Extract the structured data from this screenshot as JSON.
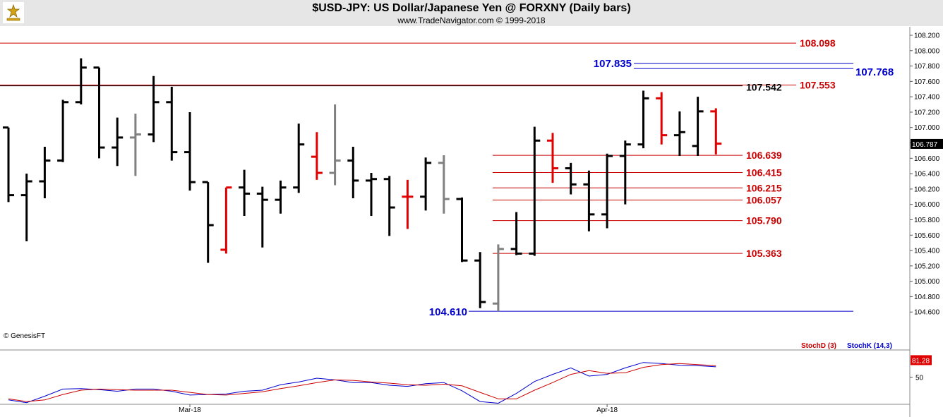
{
  "header": {
    "title": "$USD-JPY:  US Dollar/Japanese Yen @ FORXNY  (Daily bars)",
    "subtitle": "www.TradeNavigator.com © 1999-2018"
  },
  "watermark": "© GenesisFT",
  "colors": {
    "up_bar": "#000000",
    "down_bar": "#e00000",
    "neutral_bar": "#808080",
    "resistance_line": "#cc0000",
    "blue_level": "#0000cc",
    "stoch_d": "#cc0000",
    "stoch_k": "#0000cc"
  },
  "chart_data": [
    {
      "type": "ohlc",
      "title": "$USD-JPY:  US Dollar/Japanese Yen @ FORXNY  (Daily bars)",
      "ylim": [
        104.4,
        108.2
      ],
      "y_ticks": [
        "108.200",
        "108.000",
        "107.800",
        "107.600",
        "107.400",
        "107.200",
        "107.000",
        "106.800",
        "106.600",
        "106.400",
        "106.200",
        "106.000",
        "105.800",
        "105.600",
        "105.400",
        "105.200",
        "105.000",
        "104.800",
        "104.600"
      ],
      "x_labels": [
        {
          "label": "Mar-18",
          "bar_index": 10
        },
        {
          "label": "Apr-18",
          "bar_index": 33
        }
      ],
      "last_price": "106.787",
      "bars": [
        {
          "o": 107.0,
          "h": 107.0,
          "l": 106.03,
          "c": 106.12,
          "color": "black"
        },
        {
          "o": 106.12,
          "h": 106.4,
          "l": 105.52,
          "c": 106.3,
          "color": "black"
        },
        {
          "o": 106.3,
          "h": 106.75,
          "l": 106.08,
          "c": 106.57,
          "color": "black"
        },
        {
          "o": 106.57,
          "h": 107.36,
          "l": 106.55,
          "c": 107.33,
          "color": "black"
        },
        {
          "o": 107.33,
          "h": 107.9,
          "l": 107.3,
          "c": 107.78,
          "color": "black"
        },
        {
          "o": 107.78,
          "h": 107.78,
          "l": 106.6,
          "c": 106.74,
          "color": "black"
        },
        {
          "o": 106.74,
          "h": 107.13,
          "l": 106.5,
          "c": 106.87,
          "color": "black"
        },
        {
          "o": 106.87,
          "h": 107.18,
          "l": 106.37,
          "c": 106.91,
          "color": "gray"
        },
        {
          "o": 106.91,
          "h": 107.67,
          "l": 106.81,
          "c": 107.33,
          "color": "black"
        },
        {
          "o": 107.33,
          "h": 107.53,
          "l": 106.57,
          "c": 106.68,
          "color": "black"
        },
        {
          "o": 106.68,
          "h": 107.2,
          "l": 106.18,
          "c": 106.29,
          "color": "black"
        },
        {
          "o": 106.29,
          "h": 106.29,
          "l": 105.24,
          "c": 105.73,
          "color": "black"
        },
        {
          "o": 105.41,
          "h": 106.22,
          "l": 105.36,
          "c": 106.22,
          "color": "red"
        },
        {
          "o": 106.22,
          "h": 106.45,
          "l": 105.85,
          "c": 106.14,
          "color": "black"
        },
        {
          "o": 106.14,
          "h": 106.23,
          "l": 105.44,
          "c": 106.06,
          "color": "black"
        },
        {
          "o": 106.06,
          "h": 106.31,
          "l": 105.88,
          "c": 106.22,
          "color": "black"
        },
        {
          "o": 106.22,
          "h": 107.05,
          "l": 106.15,
          "c": 106.78,
          "color": "black"
        },
        {
          "o": 106.62,
          "h": 106.94,
          "l": 106.32,
          "c": 106.41,
          "color": "red"
        },
        {
          "o": 106.41,
          "h": 107.3,
          "l": 106.25,
          "c": 106.57,
          "color": "gray"
        },
        {
          "o": 106.57,
          "h": 106.75,
          "l": 106.08,
          "c": 106.31,
          "color": "black"
        },
        {
          "o": 106.31,
          "h": 106.41,
          "l": 105.85,
          "c": 106.33,
          "color": "black"
        },
        {
          "o": 106.33,
          "h": 106.37,
          "l": 105.59,
          "c": 105.96,
          "color": "black"
        },
        {
          "o": 106.1,
          "h": 106.32,
          "l": 105.68,
          "c": 106.1,
          "color": "red"
        },
        {
          "o": 106.1,
          "h": 106.61,
          "l": 105.92,
          "c": 106.54,
          "color": "black"
        },
        {
          "o": 106.54,
          "h": 106.64,
          "l": 105.88,
          "c": 106.07,
          "color": "gray"
        },
        {
          "o": 106.07,
          "h": 106.09,
          "l": 105.25,
          "c": 105.27,
          "color": "black"
        },
        {
          "o": 105.27,
          "h": 105.38,
          "l": 104.65,
          "c": 104.73,
          "color": "black"
        },
        {
          "o": 104.71,
          "h": 105.48,
          "l": 104.61,
          "c": 105.42,
          "color": "gray"
        },
        {
          "o": 105.42,
          "h": 105.9,
          "l": 105.34,
          "c": 105.36,
          "color": "black"
        },
        {
          "o": 105.36,
          "h": 107.01,
          "l": 105.33,
          "c": 106.83,
          "color": "black"
        },
        {
          "o": 106.83,
          "h": 106.93,
          "l": 106.28,
          "c": 106.47,
          "color": "red"
        },
        {
          "o": 106.47,
          "h": 106.54,
          "l": 106.13,
          "c": 106.26,
          "color": "black"
        },
        {
          "o": 106.26,
          "h": 106.44,
          "l": 105.65,
          "c": 105.87,
          "color": "black"
        },
        {
          "o": 105.87,
          "h": 106.66,
          "l": 105.69,
          "c": 106.63,
          "color": "black"
        },
        {
          "o": 106.63,
          "h": 106.83,
          "l": 106.0,
          "c": 106.78,
          "color": "black"
        },
        {
          "o": 106.78,
          "h": 107.48,
          "l": 106.73,
          "c": 107.38,
          "color": "black"
        },
        {
          "o": 107.38,
          "h": 107.46,
          "l": 106.78,
          "c": 106.9,
          "color": "red"
        },
        {
          "o": 106.9,
          "h": 107.21,
          "l": 106.63,
          "c": 106.94,
          "color": "black"
        },
        {
          "o": 106.76,
          "h": 107.4,
          "l": 106.63,
          "c": 107.21,
          "color": "black"
        },
        {
          "o": 107.21,
          "h": 107.25,
          "l": 106.65,
          "c": 106.79,
          "color": "red"
        }
      ],
      "levels": [
        {
          "value": 108.098,
          "label": "108.098",
          "color": "red",
          "start_bar": 0,
          "label_pos": "end"
        },
        {
          "value": 107.835,
          "label": "107.835",
          "color": "blue",
          "start_bar": 34,
          "label_pos": "start"
        },
        {
          "value": 107.768,
          "label": "107.768",
          "color": "blue",
          "start_bar": 34,
          "label_pos": "end"
        },
        {
          "value": 107.553,
          "label": "107.553",
          "color": "red",
          "start_bar": 0,
          "label_pos": "end"
        },
        {
          "value": 107.542,
          "label": "107.542",
          "color": "black",
          "start_bar": 0,
          "label_pos": "end"
        },
        {
          "value": 106.639,
          "label": "106.639",
          "color": "red",
          "start_bar": 27,
          "label_pos": "end"
        },
        {
          "value": 106.415,
          "label": "106.415",
          "color": "red",
          "start_bar": 27,
          "label_pos": "end"
        },
        {
          "value": 106.215,
          "label": "106.215",
          "color": "red",
          "start_bar": 27,
          "label_pos": "end"
        },
        {
          "value": 106.057,
          "label": "106.057",
          "color": "red",
          "start_bar": 27,
          "label_pos": "end"
        },
        {
          "value": 105.79,
          "label": "105.790",
          "color": "red",
          "start_bar": 27,
          "label_pos": "end"
        },
        {
          "value": 105.363,
          "label": "105.363",
          "color": "red",
          "start_bar": 27,
          "label_pos": "end"
        },
        {
          "value": 104.61,
          "label": "104.610",
          "color": "blue",
          "start_bar": 25,
          "label_pos": "start"
        }
      ]
    },
    {
      "type": "line",
      "ylim": [
        0,
        100
      ],
      "y_ticks": [
        "50"
      ],
      "last_value": "81.28",
      "legend": [
        {
          "name": "StochD (3)",
          "color": "red"
        },
        {
          "name": "StochK (14,3)",
          "color": "blue"
        }
      ],
      "series": [
        {
          "name": "StochK (14,3)",
          "values": [
            8,
            3,
            15,
            28,
            29,
            27,
            24,
            28,
            28,
            24,
            17,
            18,
            19,
            24,
            26,
            36,
            41,
            48,
            45,
            40,
            40,
            35,
            33,
            38,
            40,
            25,
            5,
            2,
            20,
            42,
            55,
            67,
            52,
            55,
            67,
            77,
            75,
            72,
            71,
            69
          ]
        },
        {
          "name": "StochD (3)",
          "values": [
            10,
            5,
            8,
            18,
            26,
            28,
            27,
            26,
            26,
            26,
            22,
            18,
            17,
            20,
            23,
            29,
            34,
            40,
            45,
            44,
            41,
            39,
            36,
            35,
            37,
            34,
            22,
            10,
            10,
            26,
            40,
            55,
            62,
            57,
            58,
            68,
            73,
            75,
            73,
            71
          ]
        }
      ]
    }
  ]
}
